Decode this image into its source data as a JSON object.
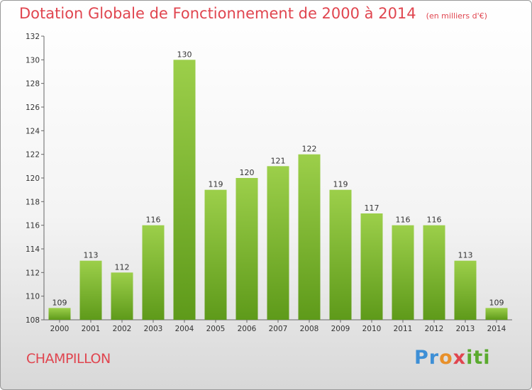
{
  "title": "Dotation Globale de Fonctionnement de 2000 à 2014",
  "subtitle": "(en milliers d'€)",
  "commune": "CHAMPILLON",
  "logo": {
    "p1": "Pr",
    "p2": "o",
    "p3": "x",
    "p4": "iti"
  },
  "colors": {
    "bar_top": "#9ccf4a",
    "bar_bottom": "#5e9a1a",
    "title": "#e0454f"
  },
  "chart_data": {
    "type": "bar",
    "categories": [
      "2000",
      "2001",
      "2002",
      "2003",
      "2004",
      "2005",
      "2006",
      "2007",
      "2008",
      "2009",
      "2010",
      "2011",
      "2012",
      "2013",
      "2014"
    ],
    "values": [
      109,
      113,
      112,
      116,
      130,
      119,
      120,
      121,
      122,
      119,
      117,
      116,
      116,
      113,
      109
    ],
    "data_labels": [
      "109",
      "113",
      "112",
      "116",
      "130",
      "119",
      "120",
      "121",
      "122",
      "119",
      "117",
      "116",
      "116",
      "113",
      "109"
    ],
    "ylim": [
      108,
      132
    ],
    "yticks": [
      108,
      110,
      112,
      114,
      116,
      118,
      120,
      122,
      124,
      126,
      128,
      130,
      132
    ],
    "grid": false,
    "legend": "none"
  }
}
